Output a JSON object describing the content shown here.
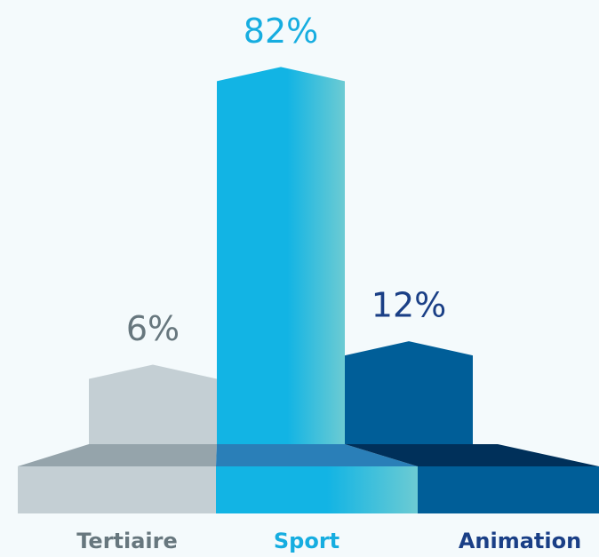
{
  "chart_data": {
    "type": "bar",
    "categories": [
      "Tertiaire",
      "Sport",
      "Animation"
    ],
    "values": [
      6,
      82,
      12
    ],
    "value_labels": [
      "6%",
      "82%",
      "12%"
    ],
    "colors": [
      "#c4cfd4",
      "#12b4e4",
      "#005e98"
    ],
    "label_colors": [
      "#67777e",
      "#16ade0",
      "#1a3f86"
    ]
  }
}
